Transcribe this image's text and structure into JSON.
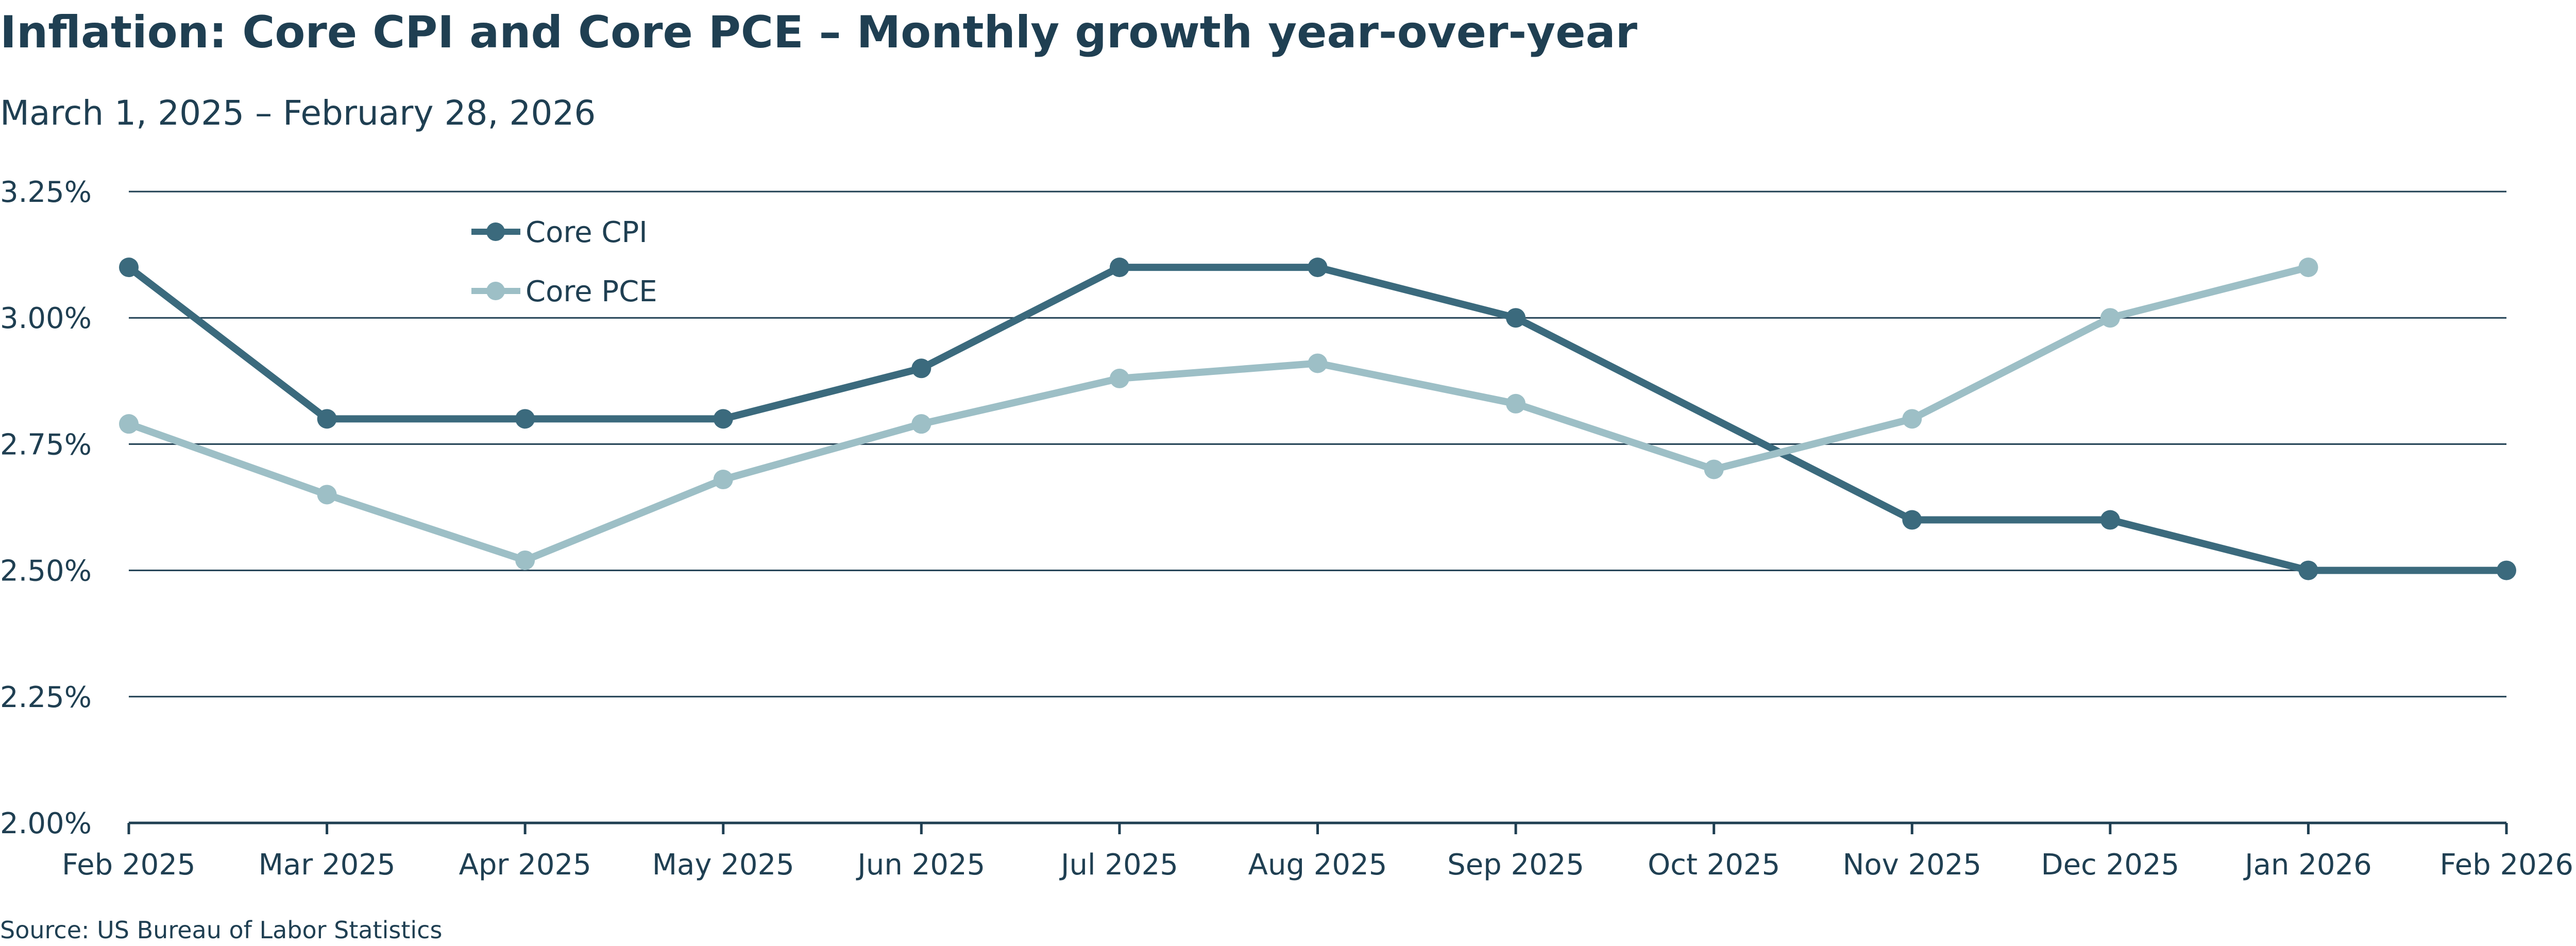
{
  "chart_data": {
    "type": "line",
    "title": "Inflation: Core CPI and Core PCE – Monthly growth year-over-year",
    "subtitle": "March 1, 2025 – February 28, 2026",
    "source": "Source: US Bureau of Labor Statistics",
    "categories": [
      "Feb 2025",
      "Mar 2025",
      "Apr 2025",
      "May 2025",
      "Jun 2025",
      "Jul 2025",
      "Aug 2025",
      "Sep 2025",
      "Oct 2025",
      "Nov 2025",
      "Dec 2025",
      "Jan 2026",
      "Feb 2026"
    ],
    "y_ticks": [
      "2.00%",
      "2.25%",
      "2.50%",
      "2.75%",
      "3.00%",
      "3.25%"
    ],
    "ylim": [
      2.0,
      3.25
    ],
    "grid": true,
    "legend_position": "top-left",
    "series": [
      {
        "name": "Core CPI",
        "color": "#3b6a7d",
        "values": [
          3.1,
          2.8,
          2.8,
          2.8,
          2.9,
          3.1,
          3.1,
          3.0,
          null,
          2.6,
          2.6,
          2.5,
          2.5
        ]
      },
      {
        "name": "Core PCE",
        "color": "#9dbfc6",
        "values": [
          2.79,
          2.65,
          2.52,
          2.68,
          2.79,
          2.88,
          2.91,
          2.83,
          2.7,
          2.8,
          3.0,
          3.1,
          null
        ]
      }
    ],
    "colors": {
      "text": "#1f3f52",
      "grid": "#1f3f52",
      "axis": "#1f3f52"
    }
  }
}
